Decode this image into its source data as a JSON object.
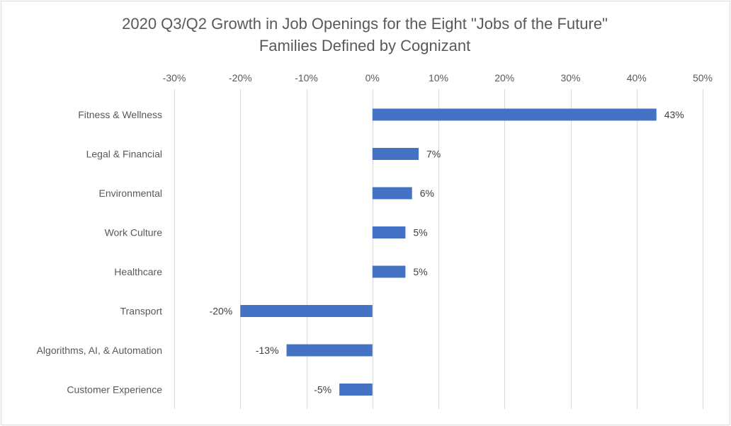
{
  "chart_data": {
    "type": "bar",
    "orientation": "horizontal",
    "title": "2020 Q3/Q2 Growth in Job Openings for the Eight \"Jobs of the Future\" Families Defined by Cognizant",
    "title_lines": [
      "2020 Q3/Q2 Growth in Job Openings for the Eight \"Jobs of the Future\"",
      "Families Defined by Cognizant"
    ],
    "xlabel": "",
    "ylabel": "",
    "xlim": [
      -30,
      50
    ],
    "x_ticks": [
      -30,
      -20,
      -10,
      0,
      10,
      20,
      30,
      40,
      50
    ],
    "x_tick_labels": [
      "-30%",
      "-20%",
      "-10%",
      "0%",
      "10%",
      "20%",
      "30%",
      "40%",
      "50%"
    ],
    "x_axis_position": "top",
    "grid": true,
    "legend": "none",
    "bar_color": "#4472c4",
    "categories": [
      "Fitness & Wellness",
      "Legal & Financial",
      "Environmental",
      "Work Culture",
      "Healthcare",
      "Transport",
      "Algorithms, AI, & Automation",
      "Customer Experience"
    ],
    "values": [
      43,
      7,
      6,
      5,
      5,
      -20,
      -13,
      -5
    ],
    "data_labels": [
      "43%",
      "7%",
      "6%",
      "5%",
      "5%",
      "-20%",
      "-13%",
      "-5%"
    ]
  }
}
